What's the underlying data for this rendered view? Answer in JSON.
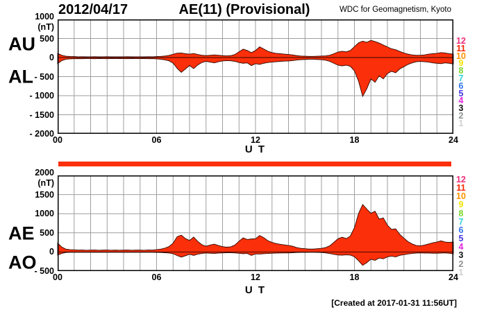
{
  "header": {
    "date": "2012/04/17",
    "title": "AE(11) (Provisional)",
    "source": "WDC for Geomagnetism, Kyoto"
  },
  "footer": {
    "created_note": "[Created at 2017-01-31 11:56UT]"
  },
  "colors": {
    "area_fill": "#fb2f0a",
    "area_stroke": "#300800",
    "grid": "#9e9e9e",
    "axis": "#000000",
    "coverage_bar": "#fb2f0a",
    "background": "#ffffff"
  },
  "stations": {
    "top": [
      "12",
      "11",
      "10",
      "9",
      "8",
      "7",
      "6",
      "5",
      "4",
      "3",
      "2",
      "1"
    ],
    "bottom": [
      "12",
      "11",
      "10",
      "9",
      "8",
      "7",
      "6",
      "5",
      "4",
      "3",
      "2",
      "1"
    ],
    "colors": {
      "12": "#ee2d7a",
      "11": "#fb2600",
      "10": "#ff9100",
      "9": "#f0e400",
      "8": "#7bd62c",
      "7": "#2fd3dc",
      "6": "#3173f0",
      "5": "#4436e3",
      "4": "#e426dd",
      "3": "#141414",
      "2": "#8f9192",
      "1": "#cfd0d0"
    }
  },
  "chart_data": [
    {
      "type": "area",
      "panel": "AU-AL",
      "left_labels": [
        "AU",
        "AL"
      ],
      "unit": "(nT)",
      "ylim": [
        -2000,
        1000
      ],
      "yticks": [
        1000,
        500,
        0,
        -500,
        -1000,
        -1500,
        -2000
      ],
      "ytick_labels": [
        "1000",
        "500",
        "0",
        "- 500",
        "- 1000",
        "- 1500",
        "- 2000"
      ],
      "xlabel": "U T",
      "xticks": [
        "00",
        "06",
        "12",
        "18",
        "24"
      ],
      "xtick_hours": [
        0,
        6,
        12,
        18,
        24
      ],
      "x_hours": 24,
      "sample_step_hours": 0.25,
      "grid": "1h vertical, 500 nT horizontal",
      "series": [
        {
          "name": "AU",
          "values": [
            110,
            60,
            35,
            28,
            25,
            20,
            22,
            18,
            20,
            22,
            18,
            20,
            22,
            18,
            20,
            18,
            20,
            22,
            18,
            20,
            20,
            18,
            22,
            20,
            25,
            30,
            40,
            55,
            85,
            115,
            120,
            100,
            90,
            105,
            80,
            60,
            50,
            60,
            70,
            60,
            50,
            45,
            50,
            80,
            150,
            220,
            185,
            130,
            185,
            280,
            225,
            165,
            130,
            110,
            100,
            90,
            80,
            70,
            50,
            40,
            35,
            30,
            30,
            35,
            40,
            45,
            60,
            100,
            145,
            165,
            150,
            185,
            285,
            385,
            430,
            400,
            450,
            420,
            380,
            330,
            280,
            230,
            205,
            160,
            120,
            90,
            70,
            60,
            60,
            70,
            90,
            100,
            110,
            130,
            120,
            100,
            90
          ]
        },
        {
          "name": "AL",
          "values": [
            -160,
            -80,
            -45,
            -35,
            -30,
            -28,
            -30,
            -25,
            -28,
            -30,
            -25,
            -28,
            -30,
            -25,
            -28,
            -25,
            -28,
            -30,
            -25,
            -28,
            -28,
            -25,
            -30,
            -28,
            -35,
            -45,
            -60,
            -85,
            -145,
            -285,
            -390,
            -300,
            -210,
            -290,
            -195,
            -130,
            -100,
            -120,
            -140,
            -110,
            -90,
            -80,
            -85,
            -100,
            -130,
            -150,
            -140,
            -210,
            -160,
            -180,
            -150,
            -130,
            -120,
            -110,
            -100,
            -95,
            -90,
            -80,
            -65,
            -55,
            -50,
            -45,
            -45,
            -50,
            -55,
            -70,
            -100,
            -150,
            -200,
            -220,
            -200,
            -230,
            -350,
            -620,
            -1020,
            -820,
            -560,
            -650,
            -480,
            -560,
            -420,
            -360,
            -400,
            -300,
            -240,
            -180,
            -140,
            -110,
            -100,
            -110,
            -120,
            -140,
            -150,
            -160,
            -140,
            -150,
            -170
          ]
        }
      ]
    },
    {
      "type": "area",
      "panel": "AE-AO",
      "left_labels": [
        "AE",
        "AO"
      ],
      "unit": "(nT)",
      "ylim": [
        -500,
        2000
      ],
      "yticks": [
        2000,
        1500,
        1000,
        500,
        0,
        -500
      ],
      "ytick_labels": [
        "2000",
        "1500",
        "1000",
        "500",
        "0",
        "- 500"
      ],
      "xlabel": "U T",
      "xticks": [
        "00",
        "06",
        "12",
        "18",
        "24"
      ],
      "xtick_hours": [
        0,
        6,
        12,
        18,
        24
      ],
      "x_hours": 24,
      "sample_step_hours": 0.25,
      "grid": "1h vertical, 500 nT horizontal",
      "series": [
        {
          "name": "AE",
          "values": [
            230,
            130,
            75,
            60,
            55,
            48,
            52,
            45,
            48,
            52,
            45,
            48,
            52,
            45,
            48,
            45,
            48,
            52,
            45,
            48,
            48,
            45,
            52,
            48,
            60,
            75,
            100,
            140,
            230,
            400,
            440,
            350,
            300,
            390,
            275,
            190,
            150,
            180,
            205,
            170,
            140,
            125,
            135,
            180,
            280,
            370,
            325,
            340,
            345,
            430,
            375,
            295,
            250,
            220,
            200,
            185,
            170,
            150,
            115,
            95,
            85,
            75,
            75,
            85,
            95,
            115,
            160,
            250,
            345,
            385,
            350,
            415,
            635,
            1005,
            1240,
            1120,
            1010,
            1065,
            860,
            890,
            700,
            590,
            605,
            460,
            360,
            270,
            210,
            170,
            160,
            180,
            210,
            240,
            260,
            290,
            260,
            250,
            260
          ]
        },
        {
          "name": "AO",
          "values": [
            -80,
            -40,
            -15,
            -10,
            -8,
            -10,
            -8,
            -10,
            -8,
            -10,
            -8,
            -10,
            -8,
            -10,
            -8,
            -10,
            -8,
            -10,
            -8,
            -10,
            -8,
            -10,
            -8,
            -10,
            -12,
            -15,
            -20,
            -28,
            -45,
            -95,
            -135,
            -100,
            -60,
            -90,
            -58,
            -38,
            -28,
            -35,
            -40,
            -30,
            -25,
            -20,
            -22,
            -25,
            -35,
            -45,
            -40,
            -90,
            -50,
            -55,
            -45,
            -40,
            -35,
            -30,
            -28,
            -25,
            -25,
            -20,
            -15,
            -12,
            -12,
            -10,
            -10,
            -12,
            -15,
            -25,
            -42,
            -62,
            -80,
            -85,
            -75,
            -82,
            -125,
            -230,
            -350,
            -280,
            -190,
            -220,
            -160,
            -180,
            -130,
            -110,
            -130,
            -90,
            -70,
            -52,
            -40,
            -30,
            -25,
            -30,
            -30,
            -35,
            -35,
            -30,
            -25,
            -35,
            -50
          ]
        }
      ]
    }
  ]
}
